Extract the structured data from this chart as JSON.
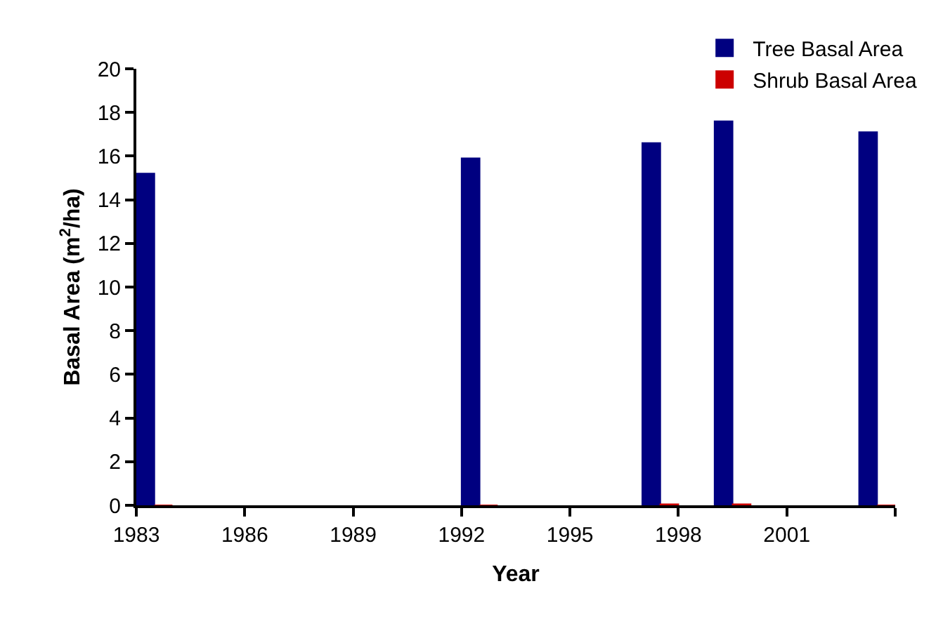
{
  "chart_data": {
    "type": "bar",
    "xlabel": "Year",
    "ylabel": "Basal Area (m$^{2}$/ha)",
    "x": [
      1983,
      1992,
      1997,
      1999,
      2003
    ],
    "series": [
      {
        "name": "Tree Basal Area",
        "color": "#000080",
        "values": [
          15.2,
          15.9,
          16.6,
          17.6,
          17.1
        ]
      },
      {
        "name": "Shrub Basal Area",
        "color": "#cc0000",
        "values": [
          0,
          0,
          0.05,
          0.05,
          0
        ]
      }
    ],
    "xlim": [
      1983,
      2004
    ],
    "xticks": [
      1983,
      1986,
      1989,
      1992,
      1995,
      1998,
      2001,
      {
        "value": 2004,
        "label": null
      }
    ],
    "ylim": [
      0,
      20
    ],
    "yticks": [
      0,
      2,
      4,
      6,
      8,
      10,
      12,
      14,
      16,
      18,
      20
    ],
    "legend": "top right"
  }
}
